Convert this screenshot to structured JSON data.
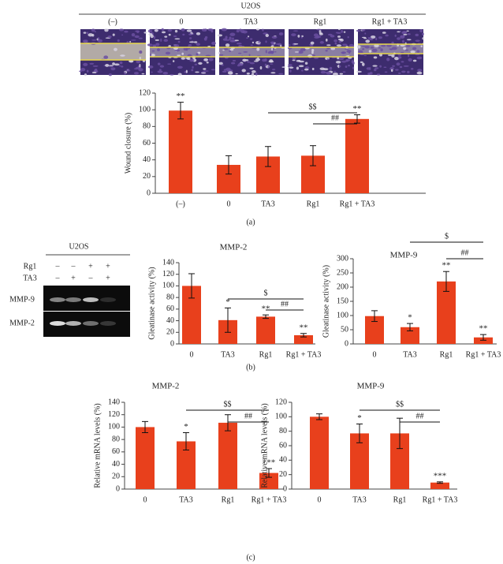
{
  "figure": {
    "panel_a": {
      "cell_line": "U2OS",
      "conditions": [
        "(–)",
        "0",
        "TA3",
        "Rg1",
        "Rg1 + TA3"
      ]
    },
    "gel": {
      "cell_line": "U2OS",
      "rows": [
        {
          "label": "Rg1",
          "marks": [
            "–",
            "–",
            "+",
            "+"
          ]
        },
        {
          "label": "TA3",
          "marks": [
            "–",
            "+",
            "–",
            "+"
          ]
        }
      ],
      "bands": [
        "MMP-9",
        "MMP-2"
      ]
    },
    "panel_labels": [
      "(a)",
      "(b)",
      "(c)"
    ]
  },
  "chart_data": [
    {
      "type": "bar",
      "y_label": "Wound closure (%)",
      "categories": [
        "(–)",
        "0",
        "TA3",
        "Rg1",
        "Rg1 + TA3"
      ],
      "values": [
        99,
        34,
        44,
        45,
        89
      ],
      "errors": [
        10,
        11,
        12,
        12,
        5
      ],
      "color": "#e8401c",
      "significance": [
        "**",
        null,
        null,
        null,
        "**"
      ],
      "brackets": [
        {
          "label": "$$",
          "from": "TA3",
          "to": "Rg1 + TA3"
        },
        {
          "label": "##",
          "from": "Rg1",
          "to": "Rg1 + TA3"
        }
      ],
      "ylim": [
        0,
        120
      ],
      "yticks": [
        0,
        20,
        40,
        60,
        80,
        100,
        120
      ]
    },
    {
      "type": "bar",
      "title": "MMP-2",
      "y_label": "Gleatinase activity (%)",
      "categories": [
        "0",
        "TA3",
        "Rg1",
        "Rg1 + TA3"
      ],
      "values": [
        100,
        41,
        47,
        15
      ],
      "errors": [
        21,
        21,
        3,
        3
      ],
      "color": "#e8401c",
      "significance": [
        null,
        "*",
        "**",
        "**"
      ],
      "brackets": [
        {
          "label": "$",
          "from": "TA3",
          "to": "Rg1 + TA3"
        },
        {
          "label": "##",
          "from": "Rg1",
          "to": "Rg1 + TA3"
        }
      ],
      "ylim": [
        0,
        140
      ],
      "yticks": [
        0,
        20,
        40,
        60,
        80,
        100,
        120,
        140
      ]
    },
    {
      "type": "bar",
      "title": "MMP-9",
      "y_label": "Gleatinase activity (%)",
      "categories": [
        "0",
        "TA3",
        "Rg1",
        "Rg1 + TA3"
      ],
      "values": [
        98,
        59,
        220,
        23
      ],
      "errors": [
        19,
        13,
        35,
        10
      ],
      "color": "#e8401c",
      "significance": [
        null,
        "*",
        "**",
        "**"
      ],
      "brackets": [
        {
          "label": "$",
          "from": "TA3",
          "to": "Rg1 + TA3"
        },
        {
          "label": "##",
          "from": "Rg1",
          "to": "Rg1 + TA3"
        }
      ],
      "ylim": [
        0,
        300
      ],
      "yticks": [
        0,
        50,
        100,
        150,
        200,
        250,
        300
      ]
    },
    {
      "type": "bar",
      "title": "MMP-2",
      "y_label": "Relative mRNA levels (%)",
      "categories": [
        "0",
        "TA3",
        "Rg1",
        "Rg1 + TA3"
      ],
      "values": [
        100,
        77,
        107,
        26
      ],
      "errors": [
        9,
        14,
        13,
        7
      ],
      "color": "#e8401c",
      "significance": [
        null,
        "*",
        null,
        "***"
      ],
      "brackets": [
        {
          "label": "$$",
          "from": "TA3",
          "to": "Rg1 + TA3"
        },
        {
          "label": "##",
          "from": "Rg1",
          "to": "Rg1 + TA3"
        }
      ],
      "ylim": [
        0,
        140
      ],
      "yticks": [
        0,
        20,
        40,
        60,
        80,
        100,
        120,
        140
      ]
    },
    {
      "type": "bar",
      "title": "MMP-9",
      "y_label": "Relative mRNA levels (%)",
      "categories": [
        "0",
        "TA3",
        "Rg1",
        "Rg1 + TA3"
      ],
      "values": [
        100,
        77,
        77,
        9
      ],
      "errors": [
        4,
        13,
        21,
        1
      ],
      "color": "#e8401c",
      "significance": [
        null,
        "*",
        null,
        "***"
      ],
      "brackets": [
        {
          "label": "$$",
          "from": "TA3",
          "to": "Rg1 + TA3"
        },
        {
          "label": "##",
          "from": "Rg1",
          "to": "Rg1 + TA3"
        }
      ],
      "ylim": [
        0,
        120
      ],
      "yticks": [
        0,
        20,
        40,
        60,
        80,
        100,
        120
      ]
    }
  ]
}
